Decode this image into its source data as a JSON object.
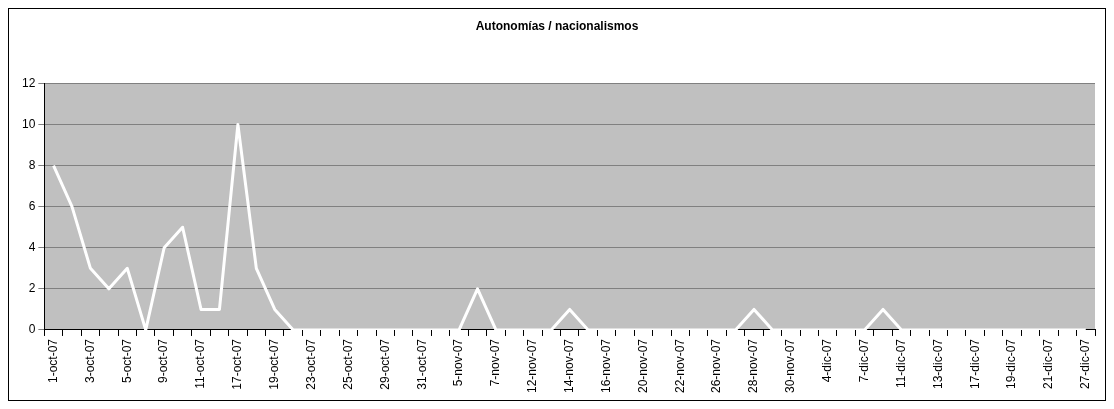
{
  "chart_data": {
    "type": "line",
    "title": "Autonomías / nacionalismos",
    "categories": [
      "1-oct-07",
      null,
      "3-oct-07",
      null,
      "5-oct-07",
      null,
      "9-oct-07",
      null,
      "11-oct-07",
      null,
      "17-oct-07",
      null,
      "19-oct-07",
      null,
      "23-oct-07",
      null,
      "25-oct-07",
      null,
      "29-oct-07",
      null,
      "31-oct-07",
      null,
      "5-nov-07",
      null,
      "7-nov-07",
      null,
      "12-nov-07",
      null,
      "14-nov-07",
      null,
      "16-nov-07",
      null,
      "20-nov-07",
      null,
      "22-nov-07",
      null,
      "26-nov-07",
      null,
      "28-nov-07",
      null,
      "30-nov-07",
      null,
      "4-dic-07",
      null,
      "7-dic-07",
      null,
      "11-dic-07",
      null,
      "13-dic-07",
      null,
      "17-dic-07",
      null,
      "19-dic-07",
      null,
      "21-dic-07",
      null,
      "27-dic-07"
    ],
    "series": [
      {
        "color": "#ffffff",
        "values": [
          8,
          6,
          3,
          2,
          3,
          0,
          4,
          5,
          1,
          1,
          10,
          3,
          1,
          0,
          0,
          0,
          0,
          0,
          0,
          0,
          0,
          0,
          0,
          2,
          0,
          0,
          0,
          0,
          1,
          0,
          0,
          0,
          0,
          0,
          0,
          0,
          0,
          0,
          1,
          0,
          0,
          0,
          0,
          0,
          0,
          1,
          0,
          0,
          0,
          0,
          0,
          0,
          0,
          0,
          0,
          0,
          0
        ]
      }
    ],
    "ylim": [
      0,
      12
    ],
    "yticks": [
      0,
      2,
      4,
      6,
      8,
      10,
      12
    ],
    "grid": "y",
    "legend": false,
    "marker": "none",
    "line_style": "solid"
  }
}
